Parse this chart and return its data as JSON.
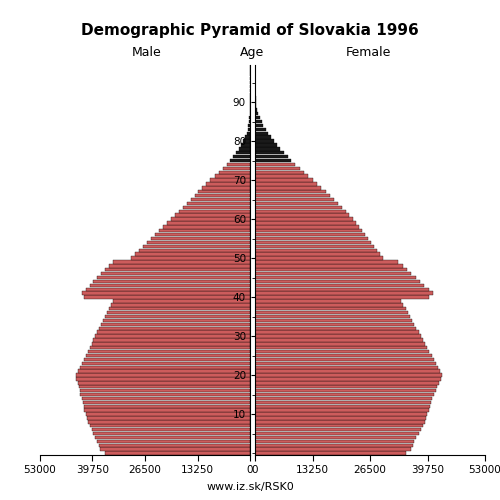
{
  "title": "Demographic Pyramid of Slovakia 1996",
  "subtitle": "www.iz.sk/RSK0",
  "label_male": "Male",
  "label_female": "Female",
  "label_age": "Age",
  "xlim": 53000,
  "xticks_left": [
    53000,
    39750,
    26500,
    13250,
    0
  ],
  "xticks_right": [
    0,
    13250,
    26500,
    39750,
    53000
  ],
  "xtick_labels_left": [
    "53000",
    "39750",
    "26500",
    "13250",
    "0"
  ],
  "xtick_labels_right": [
    "0",
    "13250",
    "26500",
    "39750",
    "53000"
  ],
  "age_ticks": [
    10,
    20,
    30,
    40,
    50,
    60,
    70,
    80,
    90
  ],
  "bar_height": 0.85,
  "color_young": "#cd5c5c",
  "color_old": "#1a1a1a",
  "color_threshold_age": 75,
  "male": [
    36500,
    37800,
    38200,
    38500,
    39000,
    39500,
    40000,
    40500,
    41000,
    41200,
    41500,
    41800,
    42000,
    42200,
    42500,
    42800,
    43000,
    43200,
    43500,
    43800,
    44000,
    43500,
    43000,
    42500,
    42000,
    41500,
    41000,
    40500,
    40000,
    39500,
    39000,
    38500,
    38000,
    37500,
    37000,
    36500,
    36000,
    35500,
    35000,
    34500,
    42000,
    42500,
    41500,
    40500,
    39500,
    38500,
    37500,
    36500,
    35500,
    34500,
    30000,
    29000,
    28000,
    27000,
    26000,
    25000,
    24000,
    23000,
    22000,
    21000,
    20000,
    19000,
    18000,
    17000,
    16000,
    15000,
    14000,
    13000,
    12000,
    11000,
    10000,
    8800,
    7700,
    6700,
    5800,
    5000,
    4200,
    3500,
    2800,
    2200,
    1700,
    1200,
    870,
    600,
    410,
    270,
    170,
    100,
    58,
    32,
    18,
    9,
    5,
    2,
    1,
    0,
    0,
    0,
    0,
    0
  ],
  "female": [
    34800,
    36000,
    36400,
    36700,
    37200,
    37700,
    38200,
    38700,
    39200,
    39400,
    39700,
    40000,
    40300,
    40600,
    40900,
    41200,
    41600,
    42000,
    42400,
    42800,
    43200,
    42700,
    42200,
    41700,
    41200,
    40700,
    40200,
    39700,
    39200,
    38700,
    38200,
    37700,
    37200,
    36700,
    36200,
    35700,
    35200,
    34700,
    34200,
    33700,
    40000,
    41000,
    40000,
    39000,
    38000,
    37000,
    36000,
    35000,
    34000,
    33000,
    29500,
    28800,
    28100,
    27400,
    26700,
    26000,
    25300,
    24600,
    23900,
    23200,
    22500,
    21700,
    20900,
    20000,
    19100,
    18200,
    17300,
    16300,
    15300,
    14300,
    13300,
    12300,
    11300,
    10300,
    9300,
    8400,
    7500,
    6600,
    5800,
    5000,
    4300,
    3600,
    3000,
    2450,
    1950,
    1500,
    1100,
    780,
    530,
    340,
    210,
    120,
    65,
    33,
    15,
    7,
    3,
    1,
    0,
    0
  ]
}
